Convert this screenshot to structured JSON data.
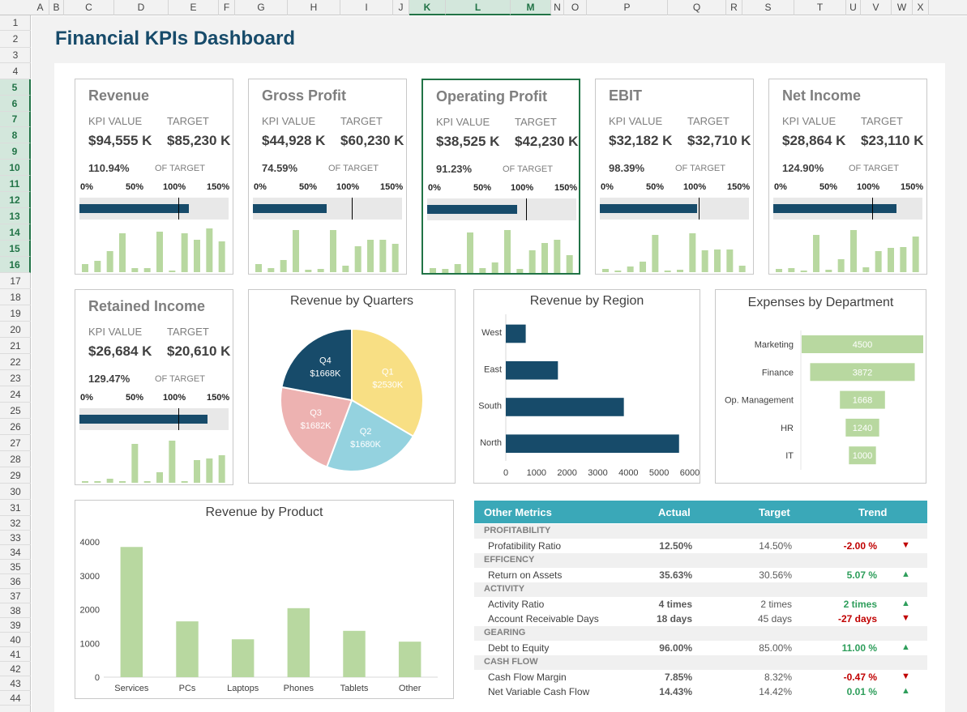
{
  "spreadsheet": {
    "columns": [
      "A",
      "B",
      "C",
      "D",
      "E",
      "F",
      "G",
      "H",
      "I",
      "J",
      "K",
      "L",
      "M",
      "N",
      "O",
      "P",
      "Q",
      "R",
      "S",
      "T",
      "U",
      "V",
      "W",
      "X"
    ],
    "selected_columns": [
      "K",
      "L",
      "M"
    ],
    "rows": [
      "1",
      "2",
      "3",
      "4",
      "5",
      "6",
      "7",
      "8",
      "9",
      "10",
      "11",
      "12",
      "13",
      "14",
      "15",
      "16",
      "17",
      "18",
      "19",
      "20",
      "21",
      "22",
      "23",
      "24",
      "25",
      "26",
      "27",
      "28",
      "29",
      "30",
      "31",
      "32",
      "33",
      "34",
      "35",
      "36",
      "37",
      "38",
      "39",
      "40",
      "41",
      "42",
      "43",
      "44"
    ],
    "selected_rows": [
      "5",
      "6",
      "7",
      "8",
      "9",
      "10",
      "11",
      "12",
      "13",
      "14",
      "15",
      "16"
    ]
  },
  "dashboard_title": "Financial KPIs Dashboard",
  "kpi_labels": {
    "kpi_value": "KPI VALUE",
    "target": "TARGET",
    "of_target": "OF TARGET",
    "ticks": [
      "0%",
      "50%",
      "100%",
      "150%"
    ]
  },
  "kpis": [
    {
      "name": "Revenue",
      "value": "$94,555 K",
      "target": "$85,230 K",
      "pct": "110.94%",
      "ratio": 1.1094,
      "spark": [
        10,
        14,
        26,
        48,
        5,
        5,
        50,
        2,
        48,
        40,
        54,
        38
      ]
    },
    {
      "name": "Gross Profit",
      "value": "$44,928 K",
      "target": "$60,230 K",
      "pct": "74.59%",
      "ratio": 0.7459,
      "spark": [
        10,
        5,
        15,
        52,
        3,
        4,
        52,
        8,
        32,
        40,
        40,
        35
      ]
    },
    {
      "name": "Operating Profit",
      "value": "$38,525 K",
      "target": "$42,230 K",
      "pct": "91.23%",
      "ratio": 0.9123,
      "spark": [
        6,
        5,
        11,
        50,
        6,
        13,
        53,
        5,
        28,
        37,
        41,
        22
      ]
    },
    {
      "name": "EBIT",
      "value": "$32,182 K",
      "target": "$32,710 K",
      "pct": "98.39%",
      "ratio": 0.9839,
      "spark": [
        4,
        2,
        7,
        13,
        46,
        2,
        3,
        48,
        27,
        28,
        28,
        8
      ]
    },
    {
      "name": "Net Income",
      "value": "$28,864 K",
      "target": "$23,110 K",
      "pct": "124.90%",
      "ratio": 1.249,
      "spark": [
        4,
        5,
        2,
        46,
        3,
        16,
        52,
        6,
        26,
        30,
        31,
        44
      ]
    },
    {
      "name": "Retained Income",
      "value": "$26,684 K",
      "target": "$20,610 K",
      "pct": "129.47%",
      "ratio": 1.2947,
      "spark": [
        2,
        2,
        5,
        2,
        48,
        2,
        13,
        52,
        2,
        28,
        30,
        34
      ]
    }
  ],
  "quarters_chart": {
    "title": "Revenue by Quarters",
    "slices": [
      {
        "label": "Q1",
        "value_label": "$2530K",
        "value": 2530,
        "color": "#f8df84"
      },
      {
        "label": "Q2",
        "value_label": "$1680K",
        "value": 1680,
        "color": "#94d2df"
      },
      {
        "label": "Q3",
        "value_label": "$1682K",
        "value": 1682,
        "color": "#edb2b1"
      },
      {
        "label": "Q4",
        "value_label": "$1668K",
        "value": 1668,
        "color": "#174b6a"
      }
    ]
  },
  "region_chart": {
    "title": "Revenue by Region",
    "categories": [
      "West",
      "East",
      "South",
      "North"
    ],
    "values": [
      650,
      1700,
      3850,
      5650
    ],
    "ticks": [
      "0",
      "1000",
      "2000",
      "3000",
      "4000",
      "5000",
      "6000"
    ],
    "xmax": 6000
  },
  "expenses_chart": {
    "title": "Expenses by Department",
    "categories": [
      "Marketing",
      "Finance",
      "Op. Management",
      "HR",
      "IT"
    ],
    "values": [
      4500,
      3872,
      1668,
      1240,
      1000
    ],
    "value_labels": [
      "4500",
      "3872",
      "1668",
      "1240",
      "1000"
    ]
  },
  "product_chart": {
    "title": "Revenue by Product",
    "categories": [
      "Services",
      "PCs",
      "Laptops",
      "Phones",
      "Tablets",
      "Other"
    ],
    "values": [
      3850,
      1650,
      1120,
      2040,
      1370,
      1050
    ],
    "ticks": [
      "0",
      "1000",
      "2000",
      "3000",
      "4000"
    ],
    "ymax": 4000
  },
  "chart_data": [
    {
      "type": "pie",
      "title": "Revenue by Quarters",
      "categories": [
        "Q1",
        "Q2",
        "Q3",
        "Q4"
      ],
      "values": [
        2530,
        1680,
        1682,
        1668
      ]
    },
    {
      "type": "bar",
      "title": "Revenue by Region",
      "categories": [
        "West",
        "East",
        "South",
        "North"
      ],
      "values": [
        650,
        1700,
        3850,
        5650
      ],
      "xlim": [
        0,
        6000
      ]
    },
    {
      "type": "bar",
      "title": "Expenses by Department",
      "categories": [
        "Marketing",
        "Finance",
        "Op. Management",
        "HR",
        "IT"
      ],
      "values": [
        4500,
        3872,
        1668,
        1240,
        1000
      ]
    },
    {
      "type": "bar",
      "title": "Revenue by Product",
      "categories": [
        "Services",
        "PCs",
        "Laptops",
        "Phones",
        "Tablets",
        "Other"
      ],
      "values": [
        3850,
        1650,
        1120,
        2040,
        1370,
        1050
      ],
      "ylim": [
        0,
        4000
      ]
    }
  ],
  "metrics": {
    "headers": {
      "metric": "Other Metrics",
      "actual": "Actual",
      "target": "Target",
      "trend": "Trend"
    },
    "rows": [
      {
        "kind": "section",
        "label": "PROFITABILITY"
      },
      {
        "kind": "item",
        "label": "Profatibility Ratio",
        "actual": "12.50%",
        "target": "14.50%",
        "trend": "-2.00 %",
        "dir": "down"
      },
      {
        "kind": "section",
        "label": "EFFICENCY"
      },
      {
        "kind": "item",
        "label": "Return on Assets",
        "actual": "35.63%",
        "target": "30.56%",
        "trend": "5.07 %",
        "dir": "up"
      },
      {
        "kind": "section",
        "label": "ACTIVITY"
      },
      {
        "kind": "item",
        "label": "Activity Ratio",
        "actual": "4 times",
        "target": "2 times",
        "trend": "2 times",
        "dir": "up"
      },
      {
        "kind": "item",
        "label": "Account Receivable Days",
        "actual": "18 days",
        "target": "45 days",
        "trend": "-27 days",
        "dir": "down"
      },
      {
        "kind": "section",
        "label": "GEARING"
      },
      {
        "kind": "item",
        "label": "Debt to Equity",
        "actual": "96.00%",
        "target": "85.00%",
        "trend": "11.00 %",
        "dir": "up"
      },
      {
        "kind": "section",
        "label": "CASH FLOW"
      },
      {
        "kind": "item",
        "label": "Cash Flow Margin",
        "actual": "7.85%",
        "target": "8.32%",
        "trend": "-0.47 %",
        "dir": "down"
      },
      {
        "kind": "item",
        "label": "Net Variable Cash Flow",
        "actual": "14.43%",
        "target": "14.42%",
        "trend": "0.01 %",
        "dir": "up"
      }
    ]
  },
  "colors": {
    "navy": "#174b6a",
    "green_bar": "#b8d8a0",
    "teal": "#3aa8b8",
    "up": "#2e9e5b",
    "down": "#c00000",
    "selection": "#217346"
  }
}
